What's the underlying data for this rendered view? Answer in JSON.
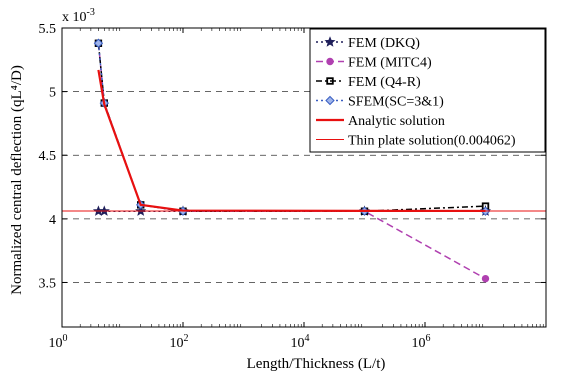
{
  "chart_data": {
    "type": "line",
    "xlabel": "Length/Thickness (L/t)",
    "ylabel": "Normalized central deflection (qL⁴/D)",
    "y_multiplier": "x 10",
    "y_multiplier_exp": "-3",
    "xscale": "log",
    "xlim": [
      1,
      100000000
    ],
    "ylim": [
      3.15,
      5.5
    ],
    "x_ticks": [
      {
        "value": 1,
        "base": "10",
        "exp": "0"
      },
      {
        "value": 100,
        "base": "10",
        "exp": "2"
      },
      {
        "value": 10000,
        "base": "10",
        "exp": "4"
      },
      {
        "value": 1000000,
        "base": "10",
        "exp": "6"
      }
    ],
    "y_ticks": [
      {
        "value": 3.5,
        "label": "3.5"
      },
      {
        "value": 4.0,
        "label": "4"
      },
      {
        "value": 4.5,
        "label": "4.5"
      },
      {
        "value": 5.0,
        "label": "5"
      },
      {
        "value": 5.5,
        "label": "5.5"
      }
    ],
    "grid": "horizontal dashed",
    "legend_position": "top-right",
    "series": [
      {
        "name": "FEM (DKQ)",
        "color": "#1f1f5a",
        "dash": "2,3",
        "marker": "star",
        "x": [
          4,
          5,
          20,
          100,
          100000,
          10000000
        ],
        "y": [
          4.06,
          4.06,
          4.06,
          4.06,
          4.06,
          4.06
        ]
      },
      {
        "name": "FEM (MITC4)",
        "color": "#b040b0",
        "dash": "7,4",
        "marker": "circle",
        "x": [
          4,
          5,
          20,
          100,
          100000,
          10000000
        ],
        "y": [
          5.38,
          4.91,
          4.11,
          4.06,
          4.06,
          3.53
        ]
      },
      {
        "name": "FEM (Q4-R)",
        "color": "#000000",
        "dash": "6,3,2,3",
        "marker": "square",
        "x": [
          4,
          5,
          20,
          100,
          100000,
          10000000
        ],
        "y": [
          5.38,
          4.91,
          4.11,
          4.06,
          4.06,
          4.1
        ]
      },
      {
        "name": "SFEM(SC=3&1)",
        "color": "#3a5ec2",
        "dash": "2,3",
        "marker": "diamond",
        "x": [
          4,
          5,
          20,
          100,
          100000,
          10000000
        ],
        "y": [
          5.38,
          4.91,
          4.11,
          4.06,
          4.06,
          4.06
        ]
      },
      {
        "name": "Analytic solution",
        "color": "#e81010",
        "dash": "",
        "marker": "none",
        "width": 2.2,
        "x": [
          4,
          5,
          20,
          100,
          100000,
          10000000
        ],
        "y": [
          5.17,
          4.9,
          4.11,
          4.065,
          4.063,
          4.062
        ]
      },
      {
        "name": "Thin plate solution(0.004062)",
        "color": "#e81010",
        "dash": "",
        "marker": "none",
        "width": 1,
        "x": [
          1,
          100000000
        ],
        "y": [
          4.062,
          4.062
        ]
      }
    ]
  }
}
